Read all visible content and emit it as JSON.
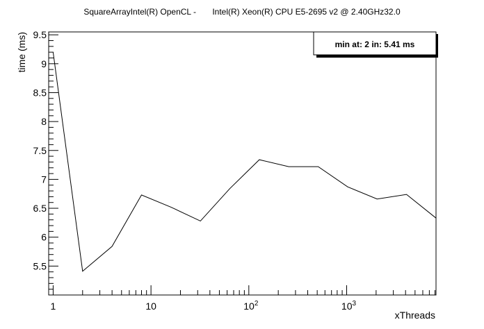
{
  "chart_data": {
    "type": "line",
    "title": "SquareArrayIntel(R) OpenCL -       Intel(R) Xeon(R) CPU E5-2695 v2 @ 2.40GHz32.0",
    "xlabel": "xThreads",
    "ylabel": "time (ms)",
    "x_scale": "log",
    "xlim": [
      0.9,
      8192
    ],
    "ylim": [
      5.0,
      9.55
    ],
    "x_tick_labels": [
      {
        "value": 1,
        "base": "1",
        "exp": ""
      },
      {
        "value": 10,
        "base": "10",
        "exp": ""
      },
      {
        "value": 100,
        "base": "10",
        "exp": "2"
      },
      {
        "value": 1000,
        "base": "10",
        "exp": "3"
      }
    ],
    "y_ticks": [
      {
        "value": 5.5,
        "label": "5.5"
      },
      {
        "value": 6,
        "label": "6"
      },
      {
        "value": 6.5,
        "label": "6.5"
      },
      {
        "value": 7,
        "label": "7"
      },
      {
        "value": 7.5,
        "label": "7.5"
      },
      {
        "value": 8,
        "label": "8"
      },
      {
        "value": 8.5,
        "label": "8.5"
      },
      {
        "value": 9,
        "label": "9"
      },
      {
        "value": 9.5,
        "label": "9.5"
      }
    ],
    "series": [
      {
        "x": [
          1,
          2,
          4,
          8,
          16,
          32,
          64,
          128,
          256,
          512,
          1024,
          2048,
          4096,
          8192
        ],
        "y": [
          9.2,
          5.41,
          5.84,
          6.73,
          6.52,
          6.28,
          6.84,
          7.34,
          7.22,
          7.22,
          6.87,
          6.66,
          6.74,
          6.33
        ]
      }
    ],
    "legend": {
      "placement": "top-right",
      "text": "min at: 2 in: 5.41 ms"
    },
    "grid": false
  }
}
